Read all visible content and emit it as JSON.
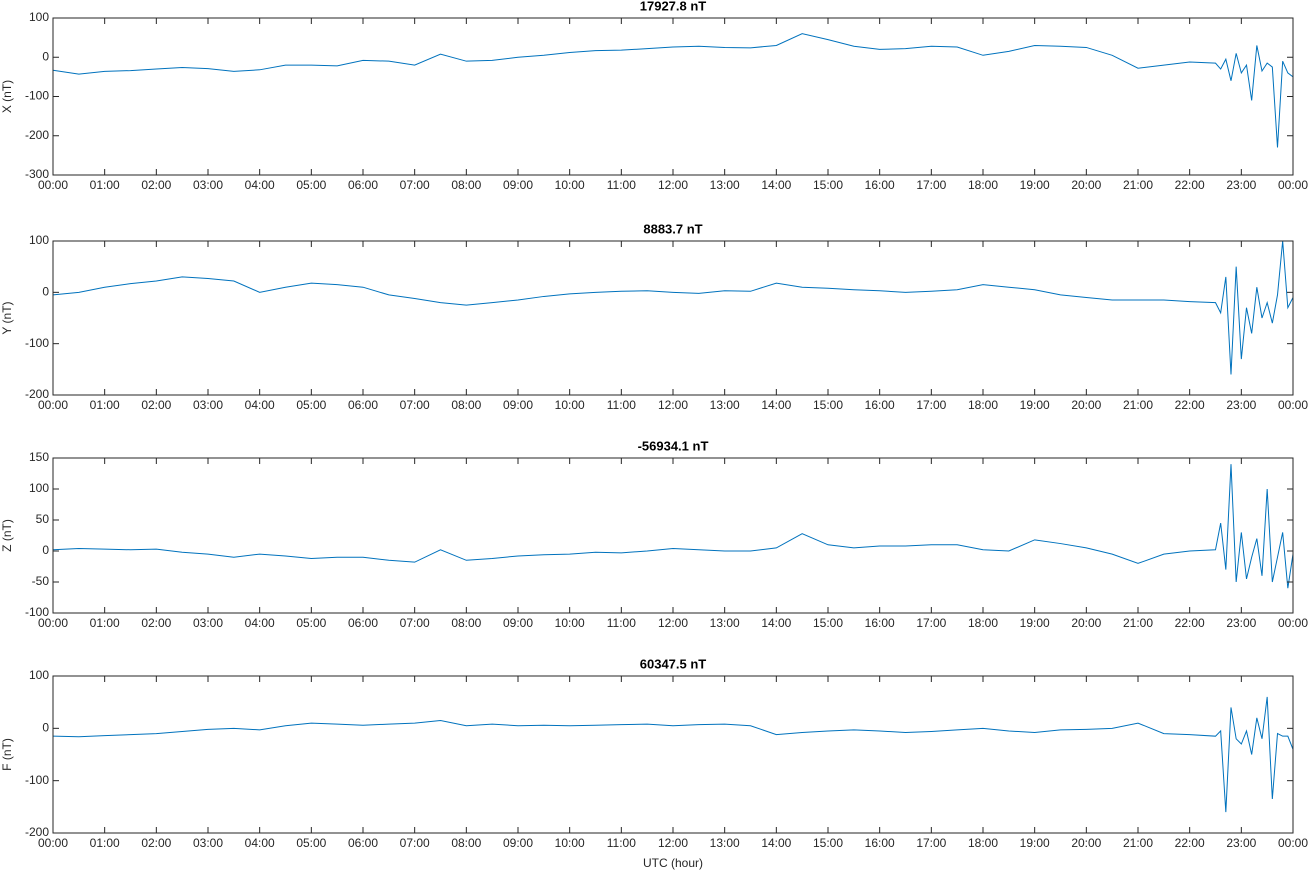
{
  "chart_data": [
    {
      "type": "line",
      "title": "17927.8 nT",
      "y_label": "X (nT)",
      "color": "#0072bd",
      "box": true,
      "x": [
        0,
        0.5,
        1,
        1.5,
        2,
        2.5,
        3,
        3.5,
        4,
        4.5,
        5,
        5.5,
        6,
        6.5,
        7,
        7.5,
        8,
        8.5,
        9,
        9.5,
        10,
        10.5,
        11,
        11.5,
        12,
        12.5,
        13,
        13.5,
        14,
        14.5,
        15,
        15.5,
        16,
        16.5,
        17,
        17.5,
        18,
        18.5,
        19,
        19.5,
        20,
        20.5,
        21,
        21.5,
        22,
        22.5,
        22.6,
        22.7,
        22.8,
        22.9,
        23,
        23.1,
        23.2,
        23.3,
        23.4,
        23.5,
        23.6,
        23.7,
        23.8,
        23.9,
        24
      ],
      "values": [
        -33,
        -43,
        -36,
        -34,
        -30,
        -26,
        -29,
        -36,
        -32,
        -20,
        -20,
        -22,
        -8,
        -10,
        -20,
        8,
        -10,
        -8,
        0,
        5,
        12,
        17,
        18,
        22,
        26,
        28,
        25,
        24,
        30,
        60,
        45,
        28,
        20,
        22,
        28,
        26,
        5,
        15,
        30,
        28,
        25,
        5,
        -28,
        -20,
        -12,
        -15,
        -30,
        -5,
        -60,
        10,
        -40,
        -20,
        -110,
        30,
        -35,
        -15,
        -25,
        -230,
        -10,
        -40,
        -50
      ],
      "xlim": [
        0,
        24
      ],
      "ylim": [
        -300,
        100
      ],
      "yticks": [
        -300,
        -200,
        -100,
        0,
        100
      ],
      "xticks": [
        {
          "value": 0,
          "label": "00:00"
        },
        {
          "value": 1,
          "label": "01:00"
        },
        {
          "value": 2,
          "label": "02:00"
        },
        {
          "value": 3,
          "label": "03:00"
        },
        {
          "value": 4,
          "label": "04:00"
        },
        {
          "value": 5,
          "label": "05:00"
        },
        {
          "value": 6,
          "label": "06:00"
        },
        {
          "value": 7,
          "label": "07:00"
        },
        {
          "value": 8,
          "label": "08:00"
        },
        {
          "value": 9,
          "label": "09:00"
        },
        {
          "value": 10,
          "label": "10:00"
        },
        {
          "value": 11,
          "label": "11:00"
        },
        {
          "value": 12,
          "label": "12:00"
        },
        {
          "value": 13,
          "label": "13:00"
        },
        {
          "value": 14,
          "label": "14:00"
        },
        {
          "value": 15,
          "label": "15:00"
        },
        {
          "value": 16,
          "label": "16:00"
        },
        {
          "value": 17,
          "label": "17:00"
        },
        {
          "value": 18,
          "label": "18:00"
        },
        {
          "value": 19,
          "label": "19:00"
        },
        {
          "value": 20,
          "label": "20:00"
        },
        {
          "value": 21,
          "label": "21:00"
        },
        {
          "value": 22,
          "label": "22:00"
        },
        {
          "value": 23,
          "label": "23:00"
        },
        {
          "value": 24,
          "label": "00:00"
        }
      ]
    },
    {
      "type": "line",
      "title": "8883.7 nT",
      "y_label": "Y (nT)",
      "color": "#0072bd",
      "box": true,
      "x": [
        0,
        0.5,
        1,
        1.5,
        2,
        2.5,
        3,
        3.5,
        4,
        4.5,
        5,
        5.5,
        6,
        6.5,
        7,
        7.5,
        8,
        8.5,
        9,
        9.5,
        10,
        10.5,
        11,
        11.5,
        12,
        12.5,
        13,
        13.5,
        14,
        14.5,
        15,
        15.5,
        16,
        16.5,
        17,
        17.5,
        18,
        18.5,
        19,
        19.5,
        20,
        20.5,
        21,
        21.5,
        22,
        22.5,
        22.6,
        22.7,
        22.8,
        22.9,
        23,
        23.1,
        23.2,
        23.3,
        23.4,
        23.5,
        23.6,
        23.7,
        23.8,
        23.9,
        24
      ],
      "values": [
        -5,
        0,
        10,
        17,
        22,
        30,
        27,
        22,
        0,
        10,
        18,
        15,
        10,
        -5,
        -12,
        -20,
        -25,
        -20,
        -15,
        -8,
        -3,
        0,
        2,
        3,
        0,
        -2,
        3,
        2,
        18,
        10,
        8,
        5,
        3,
        0,
        2,
        5,
        15,
        10,
        5,
        -5,
        -10,
        -15,
        -15,
        -15,
        -18,
        -20,
        -40,
        30,
        -160,
        50,
        -130,
        -30,
        -80,
        10,
        -50,
        -20,
        -60,
        -5,
        100,
        -30,
        -10
      ],
      "xlim": [
        0,
        24
      ],
      "ylim": [
        -200,
        100
      ],
      "yticks": [
        -200,
        -100,
        0,
        100
      ],
      "xticks": [
        {
          "value": 0,
          "label": "00:00"
        },
        {
          "value": 1,
          "label": "01:00"
        },
        {
          "value": 2,
          "label": "02:00"
        },
        {
          "value": 3,
          "label": "03:00"
        },
        {
          "value": 4,
          "label": "04:00"
        },
        {
          "value": 5,
          "label": "05:00"
        },
        {
          "value": 6,
          "label": "06:00"
        },
        {
          "value": 7,
          "label": "07:00"
        },
        {
          "value": 8,
          "label": "08:00"
        },
        {
          "value": 9,
          "label": "09:00"
        },
        {
          "value": 10,
          "label": "10:00"
        },
        {
          "value": 11,
          "label": "11:00"
        },
        {
          "value": 12,
          "label": "12:00"
        },
        {
          "value": 13,
          "label": "13:00"
        },
        {
          "value": 14,
          "label": "14:00"
        },
        {
          "value": 15,
          "label": "15:00"
        },
        {
          "value": 16,
          "label": "16:00"
        },
        {
          "value": 17,
          "label": "17:00"
        },
        {
          "value": 18,
          "label": "18:00"
        },
        {
          "value": 19,
          "label": "19:00"
        },
        {
          "value": 20,
          "label": "20:00"
        },
        {
          "value": 21,
          "label": "21:00"
        },
        {
          "value": 22,
          "label": "22:00"
        },
        {
          "value": 23,
          "label": "23:00"
        },
        {
          "value": 24,
          "label": "00:00"
        }
      ]
    },
    {
      "type": "line",
      "title": "-56934.1 nT",
      "y_label": "Z (nT)",
      "color": "#0072bd",
      "box": true,
      "x": [
        0,
        0.5,
        1,
        1.5,
        2,
        2.5,
        3,
        3.5,
        4,
        4.5,
        5,
        5.5,
        6,
        6.5,
        7,
        7.5,
        8,
        8.5,
        9,
        9.5,
        10,
        10.5,
        11,
        11.5,
        12,
        12.5,
        13,
        13.5,
        14,
        14.5,
        15,
        15.5,
        16,
        16.5,
        17,
        17.5,
        18,
        18.5,
        19,
        19.5,
        20,
        20.5,
        21,
        21.5,
        22,
        22.5,
        22.6,
        22.7,
        22.8,
        22.9,
        23,
        23.1,
        23.2,
        23.3,
        23.4,
        23.5,
        23.6,
        23.7,
        23.8,
        23.9,
        24
      ],
      "values": [
        2,
        4,
        3,
        2,
        3,
        -2,
        -5,
        -10,
        -5,
        -8,
        -12,
        -10,
        -10,
        -15,
        -18,
        2,
        -15,
        -12,
        -8,
        -6,
        -5,
        -2,
        -3,
        0,
        4,
        2,
        0,
        0,
        5,
        28,
        10,
        5,
        8,
        8,
        10,
        10,
        2,
        0,
        18,
        12,
        5,
        -5,
        -20,
        -5,
        0,
        2,
        45,
        -30,
        140,
        -50,
        30,
        -45,
        -10,
        20,
        -40,
        100,
        -50,
        -10,
        30,
        -60,
        -5
      ],
      "xlim": [
        0,
        24
      ],
      "ylim": [
        -100,
        150
      ],
      "yticks": [
        -100,
        -50,
        0,
        50,
        100,
        150
      ],
      "xticks": [
        {
          "value": 0,
          "label": "00:00"
        },
        {
          "value": 1,
          "label": "01:00"
        },
        {
          "value": 2,
          "label": "02:00"
        },
        {
          "value": 3,
          "label": "03:00"
        },
        {
          "value": 4,
          "label": "04:00"
        },
        {
          "value": 5,
          "label": "05:00"
        },
        {
          "value": 6,
          "label": "06:00"
        },
        {
          "value": 7,
          "label": "07:00"
        },
        {
          "value": 8,
          "label": "08:00"
        },
        {
          "value": 9,
          "label": "09:00"
        },
        {
          "value": 10,
          "label": "10:00"
        },
        {
          "value": 11,
          "label": "11:00"
        },
        {
          "value": 12,
          "label": "12:00"
        },
        {
          "value": 13,
          "label": "13:00"
        },
        {
          "value": 14,
          "label": "14:00"
        },
        {
          "value": 15,
          "label": "15:00"
        },
        {
          "value": 16,
          "label": "16:00"
        },
        {
          "value": 17,
          "label": "17:00"
        },
        {
          "value": 18,
          "label": "18:00"
        },
        {
          "value": 19,
          "label": "19:00"
        },
        {
          "value": 20,
          "label": "20:00"
        },
        {
          "value": 21,
          "label": "21:00"
        },
        {
          "value": 22,
          "label": "22:00"
        },
        {
          "value": 23,
          "label": "23:00"
        },
        {
          "value": 24,
          "label": "00:00"
        }
      ]
    },
    {
      "type": "line",
      "title": "60347.5 nT",
      "y_label": "F (nT)",
      "x_label": "UTC (hour)",
      "color": "#0072bd",
      "box": true,
      "x": [
        0,
        0.5,
        1,
        1.5,
        2,
        2.5,
        3,
        3.5,
        4,
        4.5,
        5,
        5.5,
        6,
        6.5,
        7,
        7.5,
        8,
        8.5,
        9,
        9.5,
        10,
        10.5,
        11,
        11.5,
        12,
        12.5,
        13,
        13.5,
        14,
        14.5,
        15,
        15.5,
        16,
        16.5,
        17,
        17.5,
        18,
        18.5,
        19,
        19.5,
        20,
        20.5,
        21,
        21.5,
        22,
        22.5,
        22.6,
        22.7,
        22.8,
        22.9,
        23,
        23.1,
        23.2,
        23.3,
        23.4,
        23.5,
        23.6,
        23.7,
        23.8,
        23.9,
        24
      ],
      "values": [
        -15,
        -16,
        -14,
        -12,
        -10,
        -6,
        -2,
        0,
        -3,
        5,
        10,
        8,
        6,
        8,
        10,
        15,
        5,
        8,
        5,
        6,
        5,
        6,
        7,
        8,
        5,
        7,
        8,
        5,
        -12,
        -8,
        -5,
        -3,
        -5,
        -8,
        -6,
        -3,
        0,
        -5,
        -8,
        -3,
        -2,
        0,
        10,
        -10,
        -12,
        -15,
        -5,
        -160,
        40,
        -20,
        -30,
        -5,
        -50,
        20,
        -20,
        60,
        -135,
        -10,
        -15,
        -15,
        -40
      ],
      "xlim": [
        0,
        24
      ],
      "ylim": [
        -200,
        100
      ],
      "yticks": [
        -200,
        -100,
        0,
        100
      ],
      "xticks": [
        {
          "value": 0,
          "label": "00:00"
        },
        {
          "value": 1,
          "label": "01:00"
        },
        {
          "value": 2,
          "label": "02:00"
        },
        {
          "value": 3,
          "label": "03:00"
        },
        {
          "value": 4,
          "label": "04:00"
        },
        {
          "value": 5,
          "label": "05:00"
        },
        {
          "value": 6,
          "label": "06:00"
        },
        {
          "value": 7,
          "label": "07:00"
        },
        {
          "value": 8,
          "label": "08:00"
        },
        {
          "value": 9,
          "label": "09:00"
        },
        {
          "value": 10,
          "label": "10:00"
        },
        {
          "value": 11,
          "label": "11:00"
        },
        {
          "value": 12,
          "label": "12:00"
        },
        {
          "value": 13,
          "label": "13:00"
        },
        {
          "value": 14,
          "label": "14:00"
        },
        {
          "value": 15,
          "label": "15:00"
        },
        {
          "value": 16,
          "label": "16:00"
        },
        {
          "value": 17,
          "label": "17:00"
        },
        {
          "value": 18,
          "label": "18:00"
        },
        {
          "value": 19,
          "label": "19:00"
        },
        {
          "value": 20,
          "label": "20:00"
        },
        {
          "value": 21,
          "label": "21:00"
        },
        {
          "value": 22,
          "label": "22:00"
        },
        {
          "value": 23,
          "label": "23:00"
        },
        {
          "value": 24,
          "label": "00:00"
        }
      ]
    }
  ]
}
